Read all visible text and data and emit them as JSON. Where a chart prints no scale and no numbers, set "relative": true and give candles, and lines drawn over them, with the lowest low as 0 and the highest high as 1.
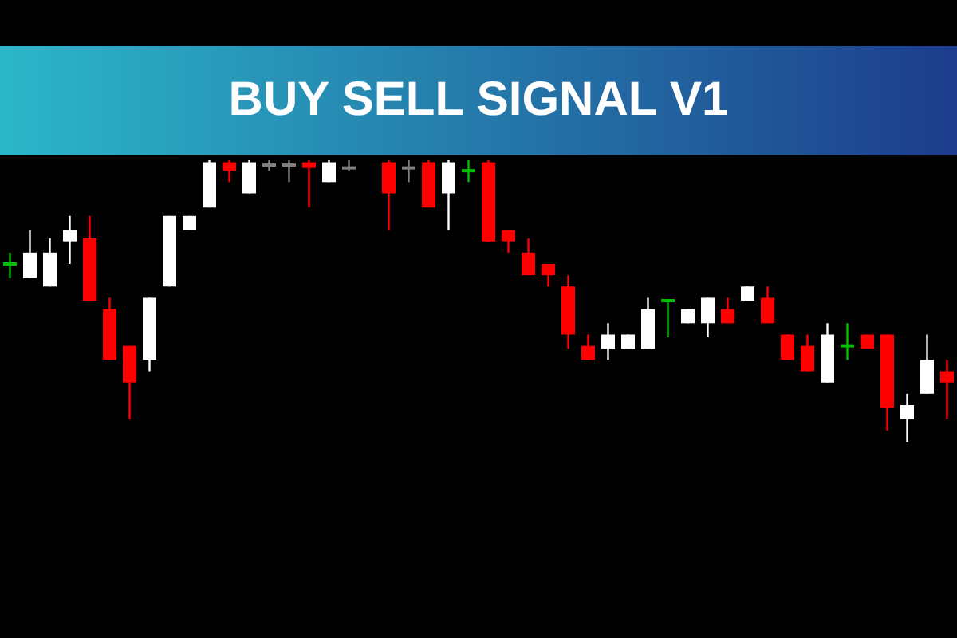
{
  "chart_data": {
    "type": "candlestick",
    "title": "BUY SELL SIGNAL V1",
    "relative": true,
    "categories": [
      null,
      null,
      null,
      null,
      null,
      null,
      null,
      null,
      null,
      null,
      null,
      null,
      null,
      null,
      null,
      null,
      null,
      null,
      null,
      null,
      null,
      null,
      null,
      null,
      null,
      null,
      null,
      null,
      null,
      null,
      null,
      null,
      null,
      null,
      null,
      null,
      null,
      null,
      null,
      null,
      null,
      null,
      null,
      null,
      null,
      null,
      null,
      null
    ],
    "ohlc": [
      [
        0.63,
        0.67,
        0.58,
        0.63
      ],
      [
        0.58,
        0.75,
        0.58,
        0.67
      ],
      [
        0.55,
        0.72,
        0.55,
        0.67
      ],
      [
        0.71,
        0.8,
        0.63,
        0.75
      ],
      [
        0.72,
        0.8,
        0.5,
        0.5
      ],
      [
        0.47,
        0.51,
        0.29,
        0.29
      ],
      [
        0.34,
        0.34,
        0.08,
        0.21
      ],
      [
        0.29,
        0.51,
        0.25,
        0.51
      ],
      [
        0.55,
        0.8,
        0.55,
        0.8
      ],
      [
        0.75,
        0.8,
        0.75,
        0.8
      ],
      [
        0.83,
        1,
        0.83,
        0.99
      ],
      [
        0.99,
        1,
        0.92,
        0.96
      ],
      [
        0.88,
        1,
        0.88,
        0.99
      ],
      [
        0.98,
        1,
        0.96,
        0.98
      ],
      [
        0.98,
        1,
        0.92,
        0.98
      ],
      [
        0.99,
        1,
        0.83,
        0.97
      ],
      [
        0.92,
        1,
        0.92,
        0.99
      ],
      [
        0.97,
        1,
        0.96,
        0.97
      ],
      null,
      [
        0.99,
        1,
        0.75,
        0.88
      ],
      [
        0.97,
        1,
        0.92,
        0.97
      ],
      [
        0.99,
        1,
        0.83,
        0.83
      ],
      [
        0.88,
        1,
        0.75,
        0.99
      ],
      [
        0.96,
        1,
        0.92,
        0.96
      ],
      [
        0.99,
        1,
        0.71,
        0.71
      ],
      [
        0.75,
        0.75,
        0.67,
        0.71
      ],
      [
        0.67,
        0.72,
        0.59,
        0.59
      ],
      [
        0.63,
        0.63,
        0.55,
        0.59
      ],
      [
        0.55,
        0.59,
        0.33,
        0.38
      ],
      [
        0.34,
        0.38,
        0.29,
        0.29
      ],
      [
        0.33,
        0.42,
        0.29,
        0.38
      ],
      [
        0.33,
        0.38,
        0.33,
        0.38
      ],
      [
        0.33,
        0.51,
        0.33,
        0.47
      ],
      [
        0.5,
        0.5,
        0.37,
        0.5
      ],
      [
        0.42,
        0.47,
        0.42,
        0.47
      ],
      [
        0.42,
        0.51,
        0.37,
        0.51
      ],
      [
        0.47,
        0.51,
        0.42,
        0.42
      ],
      [
        0.5,
        0.55,
        0.5,
        0.55
      ],
      [
        0.51,
        0.55,
        0.42,
        0.42
      ],
      [
        0.38,
        0.38,
        0.29,
        0.29
      ],
      [
        0.34,
        0.38,
        0.25,
        0.25
      ],
      [
        0.21,
        0.42,
        0.21,
        0.38
      ],
      [
        0.34,
        0.42,
        0.29,
        0.34
      ],
      [
        0.38,
        0.38,
        0.33,
        0.33
      ],
      [
        0.38,
        0.38,
        0.04,
        0.12
      ],
      [
        0.08,
        0.17,
        0,
        0.13
      ],
      [
        0.17,
        0.38,
        0.17,
        0.29
      ],
      [
        0.25,
        0.29,
        0.08,
        0.21
      ]
    ],
    "colors": [
      "#00c000",
      "#ffffff",
      "#ffffff",
      "#ffffff",
      "#ff0000",
      "#ff0000",
      "#ff0000",
      "#ffffff",
      "#ffffff",
      "#ffffff",
      "#ffffff",
      "#ff0000",
      "#ffffff",
      "#808080",
      "#808080",
      "#ff0000",
      "#ffffff",
      "#808080",
      null,
      "#ff0000",
      "#808080",
      "#ff0000",
      "#ffffff",
      "#00c000",
      "#ff0000",
      "#ff0000",
      "#ff0000",
      "#ff0000",
      "#ff0000",
      "#ff0000",
      "#ffffff",
      "#ffffff",
      "#ffffff",
      "#00c000",
      "#ffffff",
      "#ffffff",
      "#ff0000",
      "#ffffff",
      "#ff0000",
      "#ff0000",
      "#ff0000",
      "#ffffff",
      "#00c000",
      "#ff0000",
      "#ff0000",
      "#ffffff",
      "#ffffff",
      "#ff0000"
    ]
  }
}
